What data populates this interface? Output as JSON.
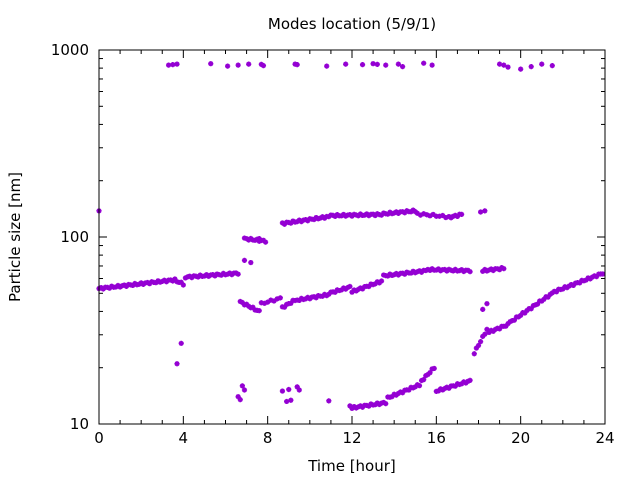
{
  "chart_data": {
    "type": "scatter",
    "title": "Modes location (5/9/1)",
    "xlabel": "Time [hour]",
    "ylabel": "Particle size [nm]",
    "xlim": [
      0,
      24
    ],
    "ylim": [
      10,
      1000
    ],
    "yscale": "log",
    "x_ticks": [
      0,
      4,
      8,
      12,
      16,
      20,
      24
    ],
    "x_tick_labels": [
      "0",
      "4",
      "8",
      "12",
      "16",
      "20",
      "24"
    ],
    "y_ticks": [
      10,
      100,
      1000
    ],
    "y_tick_labels": [
      "10",
      "100",
      "1000"
    ],
    "grid": false,
    "marker_color": "#9400d3",
    "series": [
      {
        "values_segments": [
          {
            "x_from": 0.0,
            "x_to": 3.6,
            "y_from": 53,
            "y_to": 59,
            "step": 0.1
          },
          {
            "x_from": 3.7,
            "x_to": 4.0,
            "y_from": 58,
            "y_to": 56,
            "step": 0.1
          },
          {
            "x_from": 4.1,
            "x_to": 6.6,
            "y_from": 61,
            "y_to": 64,
            "step": 0.1
          },
          {
            "x_from": 6.7,
            "x_to": 7.6,
            "y_from": 45,
            "y_to": 40,
            "step": 0.1
          },
          {
            "x_from": 7.7,
            "x_to": 8.6,
            "y_from": 44,
            "y_to": 47,
            "step": 0.15
          },
          {
            "x_from": 8.7,
            "x_to": 9.3,
            "y_from": 42,
            "y_to": 46,
            "step": 0.1
          },
          {
            "x_from": 9.4,
            "x_to": 10.8,
            "y_from": 46,
            "y_to": 49,
            "step": 0.1
          },
          {
            "x_from": 10.9,
            "x_to": 11.9,
            "y_from": 50,
            "y_to": 54,
            "step": 0.1
          },
          {
            "x_from": 12.0,
            "x_to": 13.4,
            "y_from": 51,
            "y_to": 58,
            "step": 0.1
          },
          {
            "x_from": 13.5,
            "x_to": 15.5,
            "y_from": 62,
            "y_to": 66,
            "step": 0.1
          },
          {
            "x_from": 15.6,
            "x_to": 17.6,
            "y_from": 67,
            "y_to": 66,
            "step": 0.1
          },
          {
            "x_from": 18.2,
            "x_to": 19.2,
            "y_from": 66,
            "y_to": 68,
            "step": 0.1
          },
          {
            "x_from": 18.5,
            "x_to": 19.4,
            "y_from": 31,
            "y_to": 34,
            "step": 0.1
          },
          {
            "x_from": 19.5,
            "x_to": 21.5,
            "y_from": 35,
            "y_to": 50,
            "step": 0.1
          },
          {
            "x_from": 21.6,
            "x_to": 23.9,
            "y_from": 51,
            "y_to": 64,
            "step": 0.1
          },
          {
            "x_from": 6.9,
            "x_to": 7.9,
            "y_from": 98,
            "y_to": 95,
            "step": 0.1
          },
          {
            "x_from": 8.7,
            "x_to": 10.8,
            "y_from": 118,
            "y_to": 128,
            "step": 0.1
          },
          {
            "x_from": 10.9,
            "x_to": 13.4,
            "y_from": 130,
            "y_to": 132,
            "step": 0.1
          },
          {
            "x_from": 13.5,
            "x_to": 15.0,
            "y_from": 133,
            "y_to": 138,
            "step": 0.1
          },
          {
            "x_from": 15.1,
            "x_to": 16.6,
            "y_from": 133,
            "y_to": 128,
            "step": 0.15
          },
          {
            "x_from": 16.7,
            "x_to": 17.2,
            "y_from": 128,
            "y_to": 132,
            "step": 0.1
          },
          {
            "x_from": 12.0,
            "x_to": 13.6,
            "y_from": 12.2,
            "y_to": 13.0,
            "step": 0.1
          },
          {
            "x_from": 13.7,
            "x_to": 15.2,
            "y_from": 13.8,
            "y_to": 16.2,
            "step": 0.1
          },
          {
            "x_from": 15.3,
            "x_to": 15.9,
            "y_from": 17,
            "y_to": 20,
            "step": 0.1
          },
          {
            "x_from": 16.0,
            "x_to": 17.6,
            "y_from": 15,
            "y_to": 17,
            "step": 0.1
          },
          {
            "x_from": 17.8,
            "x_to": 18.4,
            "y_from": 24,
            "y_to": 32,
            "step": 0.1
          }
        ],
        "points": [
          [
            0.0,
            138
          ],
          [
            3.7,
            21
          ],
          [
            3.9,
            27
          ],
          [
            7.2,
            73
          ],
          [
            7.6,
            98
          ],
          [
            6.9,
            75
          ],
          [
            6.6,
            14
          ],
          [
            6.7,
            13.5
          ],
          [
            6.8,
            16
          ],
          [
            6.9,
            15.2
          ],
          [
            8.7,
            15
          ],
          [
            8.9,
            13.2
          ],
          [
            9.0,
            15.3
          ],
          [
            9.1,
            13.4
          ],
          [
            9.4,
            15.8
          ],
          [
            9.5,
            15.2
          ],
          [
            10.9,
            13.3
          ],
          [
            11.9,
            12.5
          ],
          [
            18.3,
            138
          ],
          [
            18.1,
            136
          ],
          [
            18.4,
            44
          ],
          [
            18.2,
            41
          ],
          [
            3.3,
            830
          ],
          [
            3.5,
            835
          ],
          [
            3.7,
            840
          ],
          [
            5.3,
            845
          ],
          [
            6.1,
            820
          ],
          [
            6.6,
            830
          ],
          [
            7.1,
            840
          ],
          [
            7.7,
            838
          ],
          [
            7.8,
            825
          ],
          [
            9.3,
            840
          ],
          [
            9.4,
            835
          ],
          [
            10.8,
            820
          ],
          [
            11.7,
            840
          ],
          [
            12.5,
            835
          ],
          [
            13.0,
            845
          ],
          [
            13.2,
            838
          ],
          [
            13.6,
            830
          ],
          [
            14.2,
            840
          ],
          [
            14.4,
            815
          ],
          [
            15.4,
            850
          ],
          [
            15.8,
            830
          ],
          [
            19.0,
            840
          ],
          [
            19.2,
            830
          ],
          [
            19.4,
            810
          ],
          [
            20.0,
            790
          ],
          [
            20.5,
            815
          ],
          [
            21.0,
            840
          ],
          [
            21.5,
            825
          ]
        ]
      }
    ]
  }
}
